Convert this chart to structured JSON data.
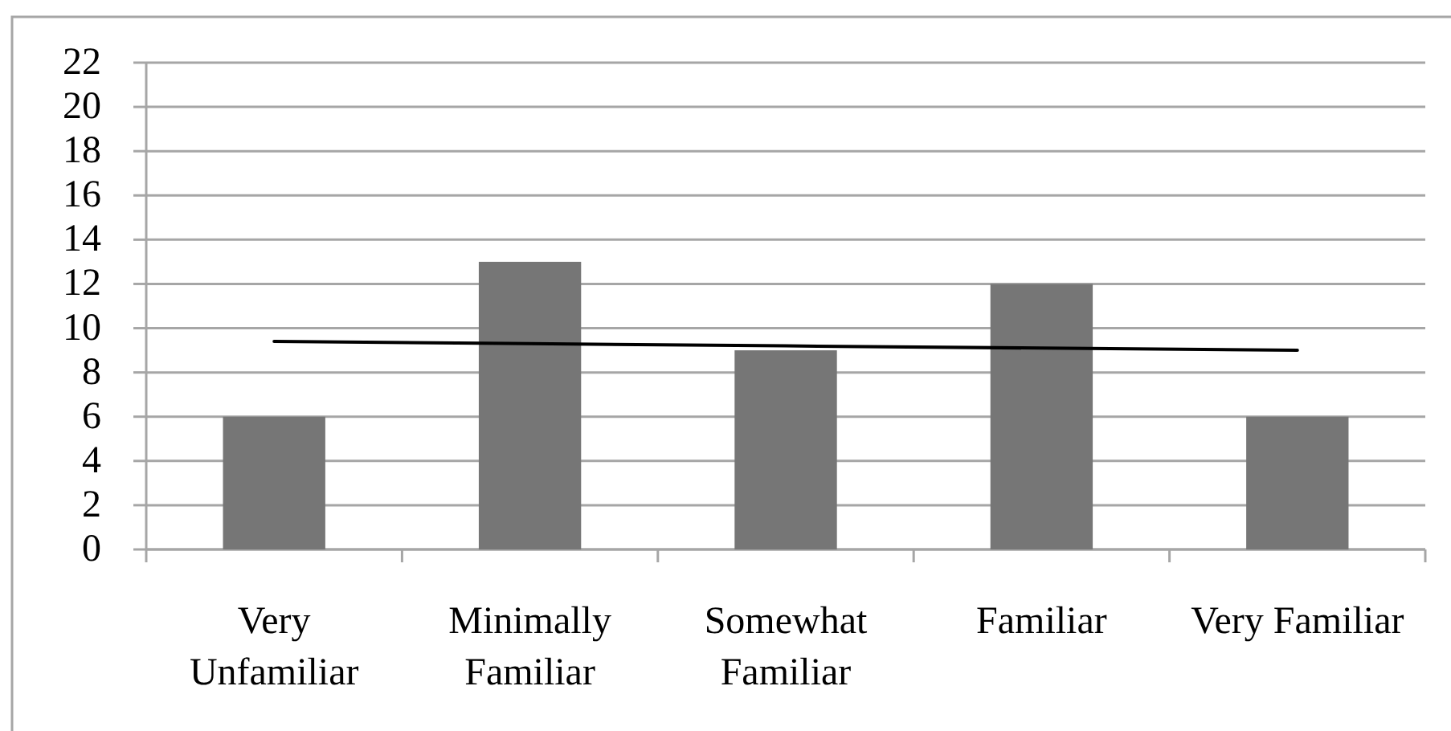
{
  "chart_data": {
    "type": "bar",
    "categories": [
      "Very Unfamiliar",
      "Minimally Familiar",
      "Somewhat Familiar",
      "Familiar",
      "Very Familiar"
    ],
    "series": [
      {
        "color": "#767676",
        "values": [
          6,
          13,
          9,
          12,
          6
        ]
      },
      {
        "type": "line",
        "color": "#000000",
        "values": [
          9.4,
          9.3,
          9.2,
          9.1,
          9.0
        ]
      }
    ],
    "ylim": [
      0,
      22
    ],
    "yticks": [
      0,
      2,
      4,
      6,
      8,
      10,
      12,
      14,
      16,
      18,
      20,
      22
    ],
    "grid": "y"
  }
}
